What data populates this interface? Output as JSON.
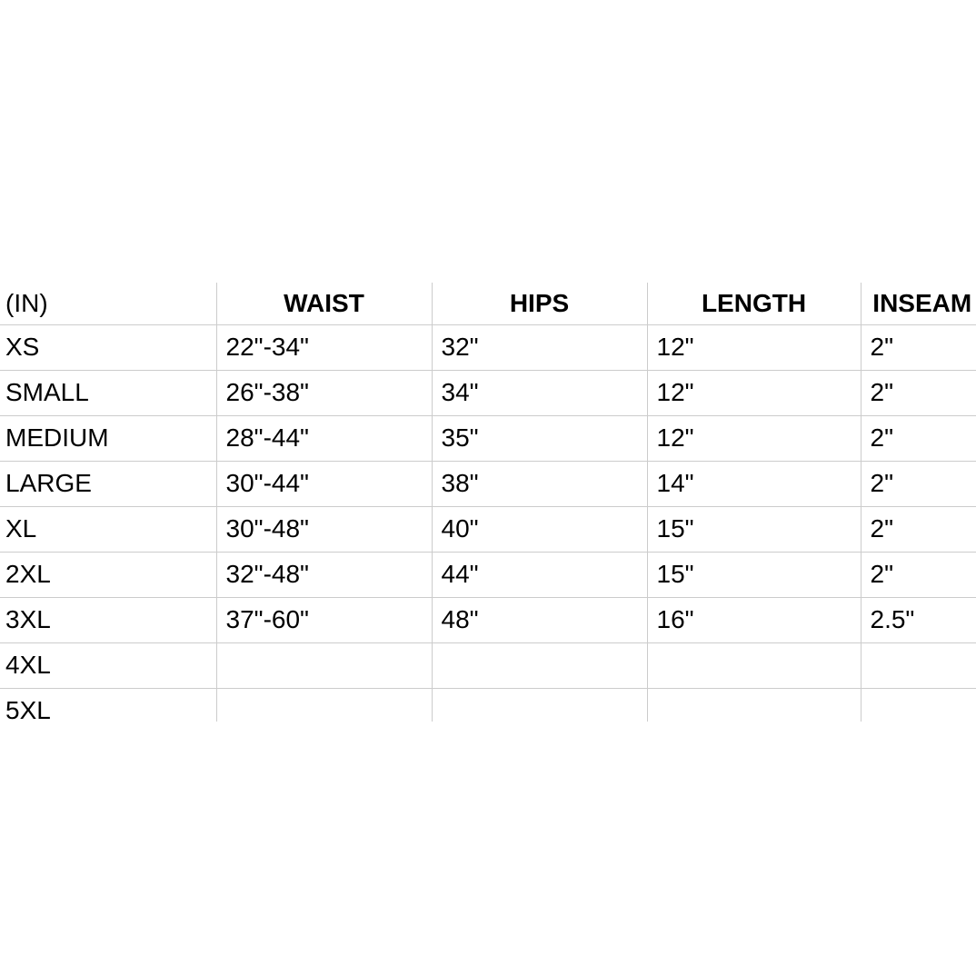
{
  "colors": {
    "background": "#ffffff",
    "grid_line": "#cccccc",
    "text": "#000000"
  },
  "table": {
    "unit_header": "(IN)",
    "column_headers": [
      "WAIST",
      "HIPS",
      "LENGTH",
      "INSEAM"
    ],
    "rows": [
      {
        "size": "XS",
        "values": [
          "22\"-34\"",
          "32\"",
          "12\"",
          "2\""
        ]
      },
      {
        "size": "SMALL",
        "values": [
          "26\"-38\"",
          "34\"",
          "12\"",
          "2\""
        ]
      },
      {
        "size": "MEDIUM",
        "values": [
          "28\"-44\"",
          "35\"",
          "12\"",
          "2\""
        ]
      },
      {
        "size": "LARGE",
        "values": [
          "30\"-44\"",
          "38\"",
          "14\"",
          "2\""
        ]
      },
      {
        "size": "XL",
        "values": [
          "30\"-48\"",
          "40\"",
          "15\"",
          "2\""
        ]
      },
      {
        "size": "2XL",
        "values": [
          "32\"-48\"",
          "44\"",
          "15\"",
          "2\""
        ]
      },
      {
        "size": "3XL",
        "values": [
          "37\"-60\"",
          "48\"",
          "16\"",
          "2.5\""
        ]
      },
      {
        "size": "4XL",
        "values": [
          "",
          "",
          "",
          ""
        ]
      },
      {
        "size": "5XL",
        "values": [
          "",
          "",
          "",
          ""
        ]
      }
    ]
  }
}
